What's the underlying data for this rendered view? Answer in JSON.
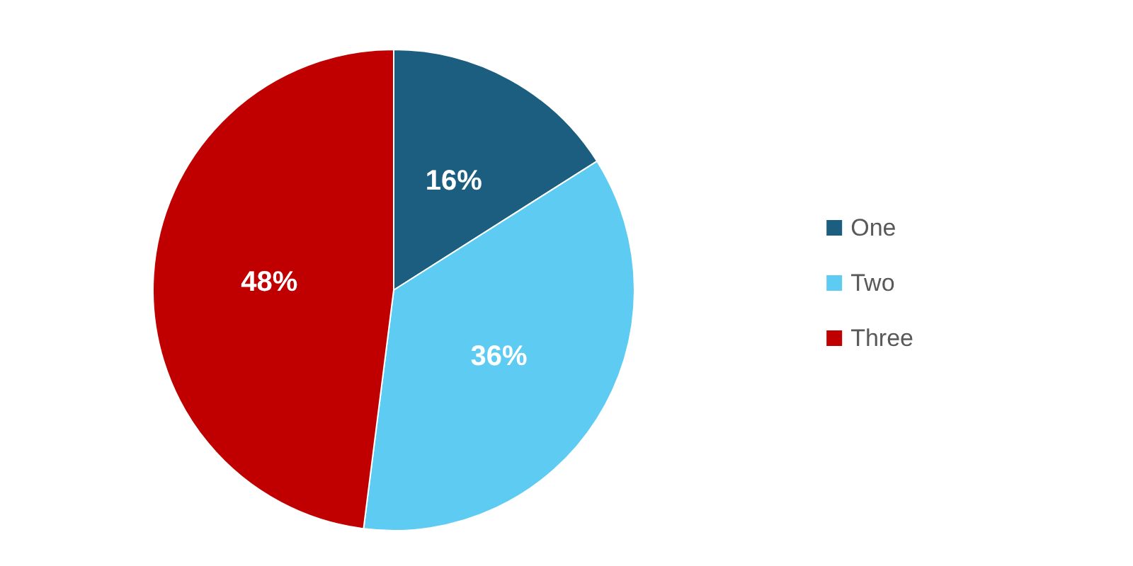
{
  "chart_data": {
    "type": "pie",
    "categories": [
      "One",
      "Two",
      "Three"
    ],
    "values": [
      16,
      36,
      48
    ],
    "colors": [
      "#1b5e80",
      "#5ecbf3",
      "#c00000"
    ],
    "value_labels": [
      "16%",
      "36%",
      "48%"
    ],
    "legend": "right"
  }
}
